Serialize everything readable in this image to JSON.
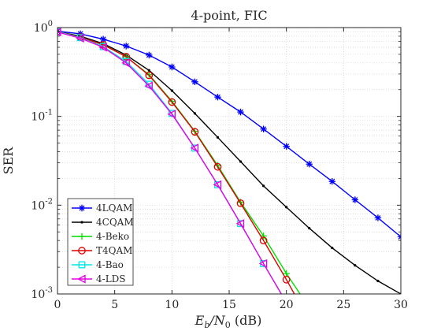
{
  "chart_data": {
    "type": "line",
    "title": "4-point, FIC",
    "xlabel": "E_b/N_0 (dB)",
    "xlabel_parts": {
      "main": "E",
      "sub1": "b",
      "mid": "/N",
      "sub2": "0",
      "tail": " (dB)"
    },
    "ylabel": "SER",
    "xlim": [
      0,
      30
    ],
    "ylim": [
      0.001,
      1
    ],
    "yscale": "log",
    "grid": true,
    "legend_position": "bottom-left",
    "xticks": [
      {
        "value": 0,
        "label": "0"
      },
      {
        "value": 5,
        "label": "5"
      },
      {
        "value": 10,
        "label": "10"
      },
      {
        "value": 15,
        "label": "15"
      },
      {
        "value": 20,
        "label": "20"
      },
      {
        "value": 25,
        "label": "25"
      },
      {
        "value": 30,
        "label": "30"
      }
    ],
    "yticks": [
      {
        "value": 1,
        "base": "10",
        "exp": "0"
      },
      {
        "value": 0.1,
        "base": "10",
        "exp": "-1"
      },
      {
        "value": 0.01,
        "base": "10",
        "exp": "-2"
      },
      {
        "value": 0.001,
        "base": "10",
        "exp": "-3"
      }
    ],
    "series": [
      {
        "name": "4LQAM",
        "color": "#0000ff",
        "marker": "asterisk",
        "x": [
          0,
          2,
          4,
          6,
          8,
          10,
          12,
          14,
          16,
          18,
          20,
          22,
          24,
          26,
          28,
          30
        ],
        "y": [
          0.91,
          0.85,
          0.74,
          0.62,
          0.49,
          0.36,
          0.245,
          0.165,
          0.112,
          0.072,
          0.046,
          0.029,
          0.0185,
          0.0115,
          0.0072,
          0.0044
        ]
      },
      {
        "name": "4CQAM",
        "color": "#000000",
        "marker": "point",
        "x": [
          0,
          2,
          4,
          6,
          8,
          10,
          12,
          14,
          16,
          18,
          20,
          22,
          24,
          26,
          28,
          30
        ],
        "y": [
          0.9,
          0.8,
          0.66,
          0.49,
          0.33,
          0.195,
          0.108,
          0.058,
          0.031,
          0.0165,
          0.0095,
          0.0055,
          0.0033,
          0.0021,
          0.0014,
          0.001
        ]
      },
      {
        "name": "4-Beko",
        "color": "#00dd00",
        "marker": "plus",
        "x": [
          0,
          2,
          4,
          6,
          8,
          10,
          12,
          14,
          16,
          18,
          20,
          22
        ],
        "y": [
          0.9,
          0.78,
          0.64,
          0.47,
          0.295,
          0.148,
          0.068,
          0.028,
          0.0108,
          0.0045,
          0.0017,
          0.0007
        ]
      },
      {
        "name": "T4QAM",
        "color": "#dd0000",
        "marker": "circle",
        "x": [
          0,
          2,
          4,
          6,
          8,
          10,
          12,
          14,
          16,
          18,
          20,
          22
        ],
        "y": [
          0.9,
          0.78,
          0.64,
          0.47,
          0.29,
          0.145,
          0.067,
          0.027,
          0.0105,
          0.004,
          0.00145,
          0.0005
        ]
      },
      {
        "name": "4-Bao",
        "color": "#00e5e5",
        "marker": "square",
        "x": [
          0,
          2,
          4,
          6,
          8,
          10,
          12,
          14,
          16,
          18,
          20
        ],
        "y": [
          0.9,
          0.77,
          0.61,
          0.415,
          0.23,
          0.108,
          0.044,
          0.017,
          0.0062,
          0.0022,
          0.0008
        ]
      },
      {
        "name": "4-LDS",
        "color": "#e600e6",
        "marker": "triangle-left",
        "x": [
          0,
          2,
          4,
          6,
          8,
          10,
          12,
          14,
          16,
          18,
          20
        ],
        "y": [
          0.89,
          0.76,
          0.6,
          0.4,
          0.22,
          0.106,
          0.044,
          0.017,
          0.0062,
          0.0022,
          0.0008
        ]
      }
    ]
  }
}
